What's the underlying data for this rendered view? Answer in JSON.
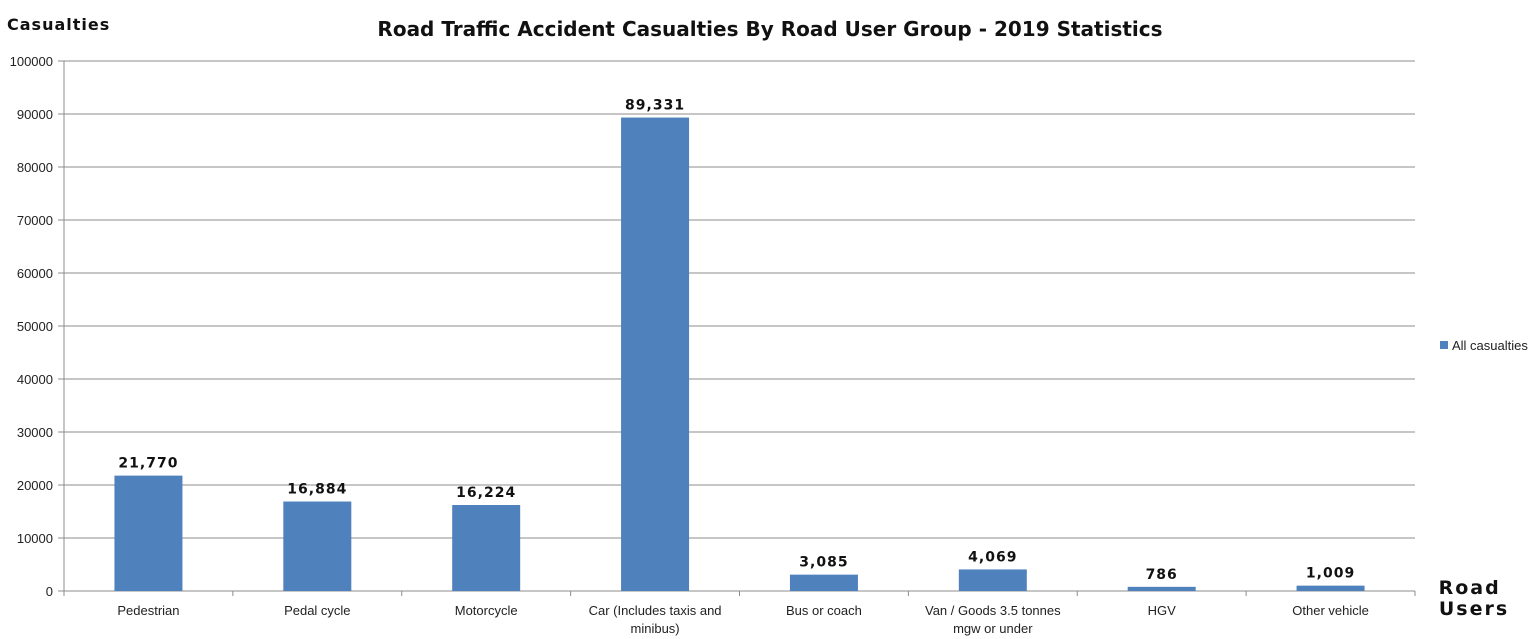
{
  "chart_data": {
    "type": "bar",
    "title": "Road Traffic Accident Casualties By Road User Group - 2019 Statistics",
    "ylabel": "Casualties",
    "xlabel": "Road Users",
    "ylim": [
      0,
      100000
    ],
    "yticks": [
      "0",
      "10000",
      "20000",
      "30000",
      "40000",
      "50000",
      "60000",
      "70000",
      "80000",
      "90000",
      "100000"
    ],
    "grid": true,
    "legend_position": "right",
    "categories": [
      [
        "Pedestrian"
      ],
      [
        "Pedal cycle"
      ],
      [
        "Motorcycle"
      ],
      [
        "Car (Includes taxis and",
        "minibus)"
      ],
      [
        "Bus or coach"
      ],
      [
        "Van / Goods 3.5 tonnes",
        "mgw or under"
      ],
      [
        "HGV"
      ],
      [
        "Other vehicle"
      ]
    ],
    "series": [
      {
        "name": "All casualties",
        "color": "#4f81bd",
        "values": [
          21770,
          16884,
          16224,
          89331,
          3085,
          4069,
          786,
          1009
        ],
        "labels": [
          "21,770",
          "16,884",
          "16,224",
          "89,331",
          "3,085",
          "4,069",
          "786",
          "1,009"
        ]
      }
    ]
  }
}
